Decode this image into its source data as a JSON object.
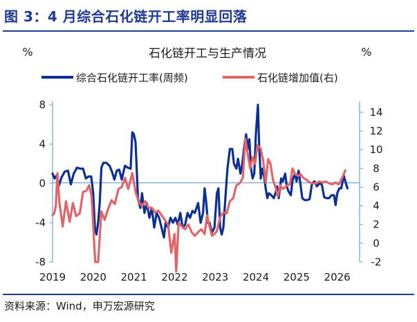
{
  "figure_title": "图 3：4 月综合石化链开工率明显回落",
  "source": "资料来源：Wind，申万宏源研究",
  "colors": {
    "series1": "#0b2f94",
    "series2": "#e06468",
    "axis": "#6aa0d6",
    "title": "#1f3a93"
  },
  "chart_data": {
    "type": "line",
    "title": "石化链开工与生产情况",
    "y_left_unit": "%",
    "y_right_unit": "%",
    "y_left_lim": [
      -8,
      8
    ],
    "y_left_ticks": [
      "8",
      "4",
      "0",
      "-4",
      "-8"
    ],
    "y_right_lim": [
      -2,
      15
    ],
    "y_right_ticks": [
      "14",
      "12",
      "10",
      "8",
      "6",
      "4",
      "2",
      "0",
      "-2"
    ],
    "x_lim": [
      2019.0,
      2026.55
    ],
    "x_ticks": [
      "2019",
      "2020",
      "2021",
      "2022",
      "2023",
      "2024",
      "2025",
      "2026"
    ],
    "grid": false,
    "legend_position": "top",
    "series": [
      {
        "name": "综合石化链开工率(周频)",
        "axis": "left",
        "points": [
          [
            2019.0,
            1.0
          ],
          [
            2019.05,
            0.5
          ],
          [
            2019.1,
            0.8
          ],
          [
            2019.15,
            -0.3
          ],
          [
            2019.22,
            0.6
          ],
          [
            2019.3,
            1.2
          ],
          [
            2019.38,
            1.3
          ],
          [
            2019.45,
            -0.1
          ],
          [
            2019.52,
            1.0
          ],
          [
            2019.6,
            1.6
          ],
          [
            2019.68,
            1.5
          ],
          [
            2019.75,
            1.5
          ],
          [
            2019.82,
            0.5
          ],
          [
            2019.88,
            0.7
          ],
          [
            2019.95,
            0.7
          ],
          [
            2020.0,
            -1.0
          ],
          [
            2020.04,
            -4.5
          ],
          [
            2020.08,
            -5.2
          ],
          [
            2020.12,
            -4.0
          ],
          [
            2020.16,
            -2.0
          ],
          [
            2020.2,
            1.6
          ],
          [
            2020.25,
            2.1
          ],
          [
            2020.32,
            2.1
          ],
          [
            2020.4,
            1.8
          ],
          [
            2020.46,
            1.2
          ],
          [
            2020.52,
            0.4
          ],
          [
            2020.58,
            1.3
          ],
          [
            2020.64,
            1.4
          ],
          [
            2020.7,
            0.4
          ],
          [
            2020.78,
            1.8
          ],
          [
            2020.85,
            1.6
          ],
          [
            2020.92,
            1.5
          ],
          [
            2020.96,
            5.2
          ],
          [
            2021.0,
            5.0
          ],
          [
            2021.04,
            4.2
          ],
          [
            2021.1,
            -1.5
          ],
          [
            2021.16,
            -2.5
          ],
          [
            2021.2,
            -1.0
          ],
          [
            2021.26,
            -3.0
          ],
          [
            2021.32,
            -2.0
          ],
          [
            2021.38,
            -3.5
          ],
          [
            2021.44,
            -2.5
          ],
          [
            2021.5,
            -4.5
          ],
          [
            2021.56,
            -3.0
          ],
          [
            2021.62,
            -3.5
          ],
          [
            2021.68,
            -4.5
          ],
          [
            2021.74,
            -5.5
          ],
          [
            2021.78,
            -4.0
          ],
          [
            2021.84,
            -4.5
          ],
          [
            2021.9,
            -3.5
          ],
          [
            2021.96,
            -4.0
          ],
          [
            2022.02,
            -3.5
          ],
          [
            2022.08,
            -4.2
          ],
          [
            2022.14,
            -3.0
          ],
          [
            2022.2,
            -4.5
          ],
          [
            2022.26,
            -4.2
          ],
          [
            2022.32,
            -3.0
          ],
          [
            2022.38,
            -3.5
          ],
          [
            2022.44,
            -2.8
          ],
          [
            2022.5,
            -3.0
          ],
          [
            2022.58,
            -2.0
          ],
          [
            2022.64,
            -4.0
          ],
          [
            2022.7,
            -3.0
          ],
          [
            2022.74,
            -0.5
          ],
          [
            2022.78,
            -2.0
          ],
          [
            2022.82,
            -4.0
          ],
          [
            2022.86,
            -4.0
          ],
          [
            2022.92,
            -5.0
          ],
          [
            2022.98,
            -4.5
          ],
          [
            2023.04,
            -1.0
          ],
          [
            2023.08,
            -0.5
          ],
          [
            2023.12,
            -4.5
          ],
          [
            2023.16,
            -5.2
          ],
          [
            2023.2,
            -4.5
          ],
          [
            2023.25,
            -1.5
          ],
          [
            2023.3,
            1.5
          ],
          [
            2023.36,
            3.5
          ],
          [
            2023.42,
            3.5
          ],
          [
            2023.46,
            2.0
          ],
          [
            2023.52,
            1.5
          ],
          [
            2023.56,
            2.5
          ],
          [
            2023.62,
            1.0
          ],
          [
            2023.66,
            1.8
          ],
          [
            2023.72,
            4.0
          ],
          [
            2023.76,
            5.0
          ],
          [
            2023.8,
            3.5
          ],
          [
            2023.84,
            4.5
          ],
          [
            2023.88,
            1.5
          ],
          [
            2023.92,
            0.5
          ],
          [
            2023.96,
            1.0
          ],
          [
            2024.0,
            5.0
          ],
          [
            2024.05,
            8.0
          ],
          [
            2024.08,
            4.0
          ],
          [
            2024.12,
            0.5
          ],
          [
            2024.16,
            1.5
          ],
          [
            2024.2,
            0.8
          ],
          [
            2024.24,
            -0.5
          ],
          [
            2024.28,
            -1.5
          ],
          [
            2024.32,
            -1.0
          ],
          [
            2024.38,
            -1.2
          ],
          [
            2024.44,
            -1.5
          ],
          [
            2024.48,
            -1.0
          ],
          [
            2024.52,
            -0.3
          ],
          [
            2024.56,
            -1.5
          ],
          [
            2024.62,
            0.5
          ],
          [
            2024.66,
            0.2
          ],
          [
            2024.72,
            1.0
          ],
          [
            2024.76,
            -0.3
          ],
          [
            2024.8,
            -0.8
          ],
          [
            2024.86,
            -1.2
          ],
          [
            2024.9,
            0.3
          ],
          [
            2024.96,
            1.0
          ],
          [
            2025.0,
            0.2
          ],
          [
            2025.05,
            1.3
          ],
          [
            2025.1,
            -0.2
          ],
          [
            2025.14,
            -1.5
          ],
          [
            2025.2,
            -1.7
          ],
          [
            2025.26,
            -1.7
          ],
          [
            2025.32,
            -1.6
          ],
          [
            2025.38,
            0.0
          ],
          [
            2025.44,
            0.2
          ],
          [
            2025.5,
            -0.3
          ],
          [
            2025.56,
            0.0
          ],
          [
            2025.62,
            -0.1
          ],
          [
            2025.68,
            -1.4
          ],
          [
            2025.74,
            -1.5
          ],
          [
            2025.8,
            -1.5
          ],
          [
            2025.86,
            -1.2
          ],
          [
            2025.92,
            -1.2
          ],
          [
            2025.96,
            -2.2
          ],
          [
            2026.0,
            -1.0
          ],
          [
            2026.05,
            -0.5
          ],
          [
            2026.1,
            -0.5
          ],
          [
            2026.16,
            0.8
          ],
          [
            2026.2,
            0.2
          ],
          [
            2026.25,
            -0.5
          ]
        ]
      },
      {
        "name": "石化链增加值(右)",
        "axis": "right",
        "points": [
          [
            2019.0,
            3.0
          ],
          [
            2019.04,
            3.2
          ],
          [
            2019.08,
            4.0
          ],
          [
            2019.12,
            7.5
          ],
          [
            2019.17,
            4.3
          ],
          [
            2019.25,
            1.8
          ],
          [
            2019.33,
            4.5
          ],
          [
            2019.42,
            2.3
          ],
          [
            2019.5,
            4.3
          ],
          [
            2019.58,
            2.9
          ],
          [
            2019.67,
            3.2
          ],
          [
            2019.75,
            5.5
          ],
          [
            2019.83,
            5.6
          ],
          [
            2019.9,
            6.2
          ],
          [
            2019.96,
            5.0
          ],
          [
            2020.05,
            -2.0
          ],
          [
            2020.12,
            -2.0
          ],
          [
            2020.2,
            3.4
          ],
          [
            2020.28,
            2.5
          ],
          [
            2020.36,
            3.6
          ],
          [
            2020.45,
            4.6
          ],
          [
            2020.53,
            4.2
          ],
          [
            2020.62,
            5.8
          ],
          [
            2020.7,
            6.0
          ],
          [
            2020.78,
            7.0
          ],
          [
            2020.86,
            5.8
          ],
          [
            2020.96,
            7.5
          ],
          [
            2021.04,
            5.5
          ],
          [
            2021.12,
            4.4
          ],
          [
            2021.2,
            4.0
          ],
          [
            2021.28,
            4.5
          ],
          [
            2021.36,
            3.8
          ],
          [
            2021.44,
            3.8
          ],
          [
            2021.52,
            3.3
          ],
          [
            2021.6,
            3.5
          ],
          [
            2021.68,
            3.0
          ],
          [
            2021.76,
            2.5
          ],
          [
            2021.84,
            2.0
          ],
          [
            2021.92,
            -1.0
          ],
          [
            2022.0,
            1.0
          ],
          [
            2022.04,
            -3.0
          ],
          [
            2022.1,
            2.2
          ],
          [
            2022.18,
            1.8
          ],
          [
            2022.26,
            1.5
          ],
          [
            2022.34,
            2.0
          ],
          [
            2022.42,
            1.2
          ],
          [
            2022.5,
            0.8
          ],
          [
            2022.58,
            1.2
          ],
          [
            2022.66,
            1.5
          ],
          [
            2022.74,
            1.0
          ],
          [
            2022.8,
            3.0
          ],
          [
            2022.86,
            1.8
          ],
          [
            2022.92,
            0.8
          ],
          [
            2022.98,
            1.0
          ],
          [
            2023.04,
            1.3
          ],
          [
            2023.12,
            2.8
          ],
          [
            2023.2,
            3.3
          ],
          [
            2023.28,
            3.2
          ],
          [
            2023.36,
            4.5
          ],
          [
            2023.44,
            4.8
          ],
          [
            2023.52,
            6.2
          ],
          [
            2023.6,
            6.4
          ],
          [
            2023.68,
            7.0
          ],
          [
            2023.74,
            11.2
          ],
          [
            2023.8,
            9.5
          ],
          [
            2023.86,
            8.0
          ],
          [
            2023.92,
            9.2
          ],
          [
            2023.98,
            8.5
          ],
          [
            2024.04,
            10.5
          ],
          [
            2024.12,
            10.1
          ],
          [
            2024.18,
            8.8
          ],
          [
            2024.24,
            6.5
          ],
          [
            2024.3,
            9.0
          ],
          [
            2024.36,
            8.5
          ],
          [
            2024.42,
            6.8
          ],
          [
            2024.48,
            6.0
          ],
          [
            2024.54,
            5.0
          ],
          [
            2024.6,
            6.2
          ],
          [
            2024.66,
            5.8
          ],
          [
            2024.72,
            6.0
          ],
          [
            2024.78,
            6.2
          ],
          [
            2024.84,
            6.3
          ],
          [
            2024.9,
            8.0
          ],
          [
            2024.96,
            7.4
          ],
          [
            2025.04,
            7.2
          ],
          [
            2025.1,
            7.4
          ],
          [
            2025.16,
            7.0
          ],
          [
            2025.24,
            6.8
          ],
          [
            2025.32,
            6.5
          ],
          [
            2025.4,
            6.4
          ],
          [
            2025.48,
            6.4
          ],
          [
            2025.56,
            6.6
          ],
          [
            2025.64,
            6.5
          ],
          [
            2025.72,
            6.6
          ],
          [
            2025.8,
            6.4
          ],
          [
            2025.88,
            6.3
          ],
          [
            2025.96,
            6.5
          ],
          [
            2026.04,
            6.3
          ],
          [
            2026.12,
            7.0
          ],
          [
            2026.2,
            7.8
          ]
        ]
      }
    ]
  }
}
